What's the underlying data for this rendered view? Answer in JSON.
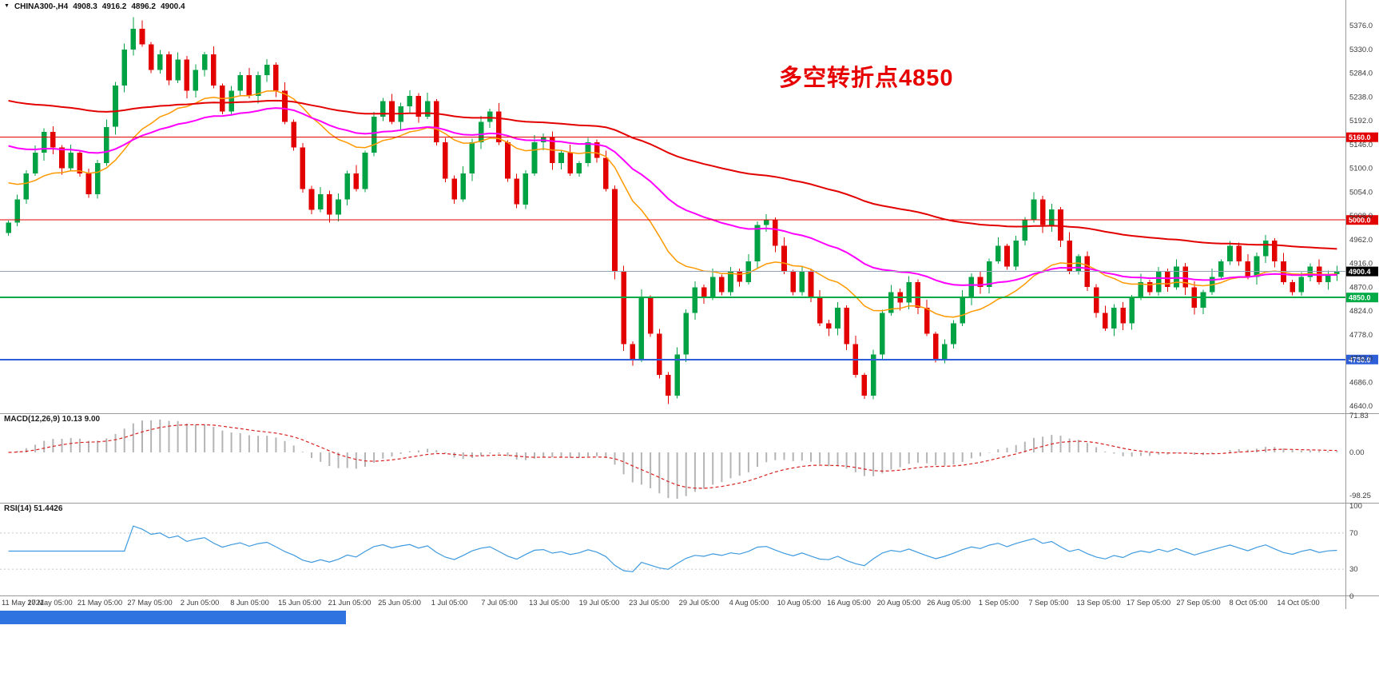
{
  "header": {
    "marker": "▼",
    "symbol_period": "CHINA300-,H4",
    "open": "4908.3",
    "high": "4916.2",
    "low": "4896.2",
    "close": "4900.4"
  },
  "annotation": {
    "text": "多空转折点4850",
    "color": "#e60000"
  },
  "colors": {
    "up": "#00a243",
    "down": "#e30000",
    "ma_fast": "#ff9900",
    "ma_mid": "#ff00ff",
    "ma_slow": "#e30000",
    "macd_hist": "#b4b4b4",
    "macd_signal": "#d92121",
    "rsi_line": "#3e9adf",
    "axis_text": "#3a3a3a",
    "separator": "#9a9a9a",
    "current_line": "#92a4b6",
    "bottom_bar": "#2e73e0"
  },
  "price_axis": {
    "top": 5376,
    "step": 46,
    "labels": [
      "5376.0",
      "5330.0",
      "5284.0",
      "5238.0",
      "5192.0",
      "5146.0",
      "5100.0",
      "5054.0",
      "5008.0",
      "4962.0",
      "4916.0",
      "4870.0",
      "4824.0",
      "4778.0",
      "4732.0",
      "4686.0",
      "4640.0"
    ]
  },
  "levels": [
    {
      "price": 5160.0,
      "label": "5160.0",
      "color": "#e30000",
      "width": 1
    },
    {
      "price": 5000.0,
      "label": "5000.0",
      "color": "#e30000",
      "width": 1
    },
    {
      "price": 4850.0,
      "label": "4850.0",
      "color": "#00aa44",
      "width": 2
    },
    {
      "price": 4730.0,
      "label": "4730.0",
      "color": "#2e5fd8",
      "width": 2
    }
  ],
  "current_price": {
    "value": 4900.4,
    "label": "4900.4"
  },
  "macd": {
    "label": "MACD(12,26,9) 10.13 9.00",
    "axis_labels": [
      "71.83",
      "0.00",
      "-98.25"
    ]
  },
  "rsi": {
    "label": "RSI(14) 51.4426",
    "axis_labels": [
      "100",
      "70",
      "30",
      "0"
    ],
    "levels": [
      70,
      30
    ]
  },
  "time_axis": {
    "labels": [
      "11 May 2021",
      "17 May 05:00",
      "21 May 05:00",
      "27 May 05:00",
      "2 Jun 05:00",
      "8 Jun 05:00",
      "15 Jun 05:00",
      "21 Jun 05:00",
      "25 Jun 05:00",
      "1 Jul 05:00",
      "7 Jul 05:00",
      "13 Jul 05:00",
      "19 Jul 05:00",
      "23 Jul 05:00",
      "29 Jul 05:00",
      "4 Aug 05:00",
      "10 Aug 05:00",
      "16 Aug 05:00",
      "20 Aug 05:00",
      "26 Aug 05:00",
      "1 Sep 05:00",
      "7 Sep 05:00",
      "13 Sep 05:00",
      "17 Sep 05:00",
      "27 Sep 05:00",
      "8 Oct 05:00",
      "14 Oct 05:00"
    ]
  },
  "chart_data": [
    {
      "type": "candlestick",
      "title": "CHINA300- H4",
      "ylim": [
        4640,
        5376
      ],
      "last_bar": {
        "open": 4908.3,
        "high": 4916.2,
        "low": 4896.2,
        "close": 4900.4
      },
      "first_open": 4975,
      "extreme_high": 5392,
      "extreme_high_index": 14,
      "extreme_low": 4644,
      "extreme_low_index": 74,
      "closes": [
        4995,
        5040,
        5090,
        5130,
        5170,
        5140,
        5100,
        5130,
        5090,
        5050,
        5110,
        5180,
        5260,
        5330,
        5370,
        5340,
        5290,
        5320,
        5270,
        5310,
        5250,
        5290,
        5320,
        5260,
        5210,
        5250,
        5280,
        5240,
        5280,
        5300,
        5250,
        5190,
        5140,
        5060,
        5020,
        5050,
        5010,
        5040,
        5090,
        5060,
        5130,
        5200,
        5230,
        5190,
        5220,
        5240,
        5200,
        5230,
        5150,
        5080,
        5040,
        5090,
        5150,
        5190,
        5210,
        5150,
        5080,
        5030,
        5090,
        5150,
        5160,
        5110,
        5130,
        5090,
        5110,
        5150,
        5120,
        5060,
        4900,
        4760,
        4730,
        4850,
        4780,
        4700,
        4660,
        4740,
        4820,
        4870,
        4850,
        4890,
        4860,
        4900,
        4880,
        4920,
        4990,
        5000,
        4950,
        4900,
        4860,
        4900,
        4850,
        4800,
        4790,
        4830,
        4760,
        4700,
        4660,
        4740,
        4820,
        4860,
        4840,
        4880,
        4830,
        4780,
        4730,
        4760,
        4800,
        4850,
        4890,
        4870,
        4920,
        4950,
        4910,
        4960,
        5000,
        5040,
        4990,
        5020,
        4960,
        4900,
        4930,
        4870,
        4820,
        4790,
        4830,
        4800,
        4850,
        4880,
        4860,
        4900,
        4870,
        4910,
        4870,
        4830,
        4860,
        4890,
        4920,
        4950,
        4920,
        4890,
        4930,
        4960,
        4920,
        4880,
        4860,
        4890,
        4910,
        4880,
        4895,
        4900.4
      ],
      "moving_averages": [
        {
          "period": 20,
          "seed": 5080,
          "color": "#ff9900",
          "width": 1.5
        },
        {
          "period": 45,
          "seed": 5150,
          "color": "#ff00ff",
          "width": 2
        },
        {
          "period": 110,
          "seed": 5235,
          "color": "#e30000",
          "width": 2
        }
      ],
      "horizontal_levels": [
        5160.0,
        5000.0,
        4850.0,
        4730.0
      ],
      "current_price": 4900.4
    },
    {
      "type": "bar",
      "name": "MACD(12,26,9)",
      "current_macd": 10.13,
      "current_signal": 9.0,
      "ylim": [
        -98.25,
        71.83
      ]
    },
    {
      "type": "line",
      "name": "RSI(14)",
      "period": 14,
      "current": 51.4426,
      "ylim": [
        0,
        100
      ],
      "levels": [
        30,
        70
      ]
    }
  ]
}
